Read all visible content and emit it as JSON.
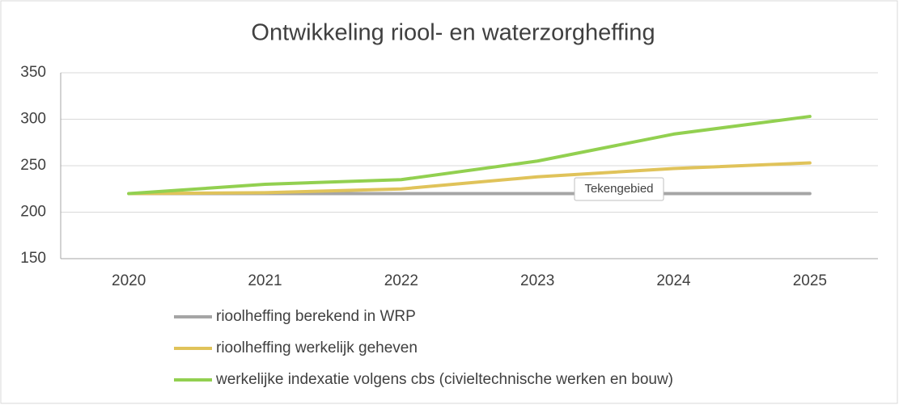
{
  "chart_data": {
    "type": "line",
    "title": "Ontwikkeling riool- en waterzorgheffing",
    "categories": [
      "2020",
      "2021",
      "2022",
      "2023",
      "2024",
      "2025"
    ],
    "series": [
      {
        "name": "rioolheffing berekend in WRP",
        "color": "#a5a5a5",
        "values": [
          220,
          220,
          220,
          220,
          220,
          220
        ]
      },
      {
        "name": "rioolheffing werkelijk geheven",
        "color": "#e0c35a",
        "values": [
          220,
          221,
          225,
          238,
          247,
          253
        ]
      },
      {
        "name": "werkelijke indexatie volgens cbs (civieltechnische werken en bouw)",
        "color": "#92d050",
        "values": [
          220,
          230,
          235,
          255,
          284,
          303
        ]
      }
    ],
    "ylim": [
      150,
      350
    ],
    "yticks": [
      150,
      200,
      250,
      300,
      350
    ],
    "grid": true,
    "legend": "bottom",
    "tooltip": "Tekengebied"
  }
}
